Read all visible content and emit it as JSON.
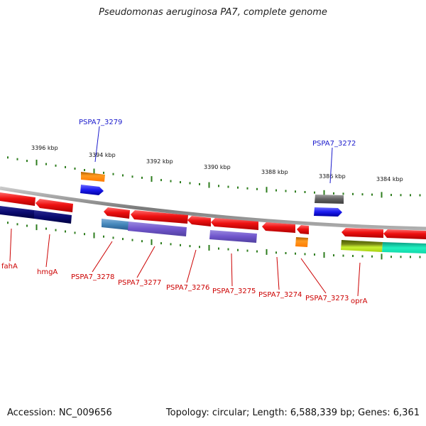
{
  "title": "Pseudomonas aeruginosa PA7, complete genome",
  "footer": {
    "accession": "Accession: NC_009656",
    "topology": "Topology: circular; Length: 6,588,339 bp; Genes: 6,361"
  },
  "scale_labels": [
    "3396 kbp",
    "3394 kbp",
    "3392 kbp",
    "3390 kbp",
    "3388 kbp",
    "3386 kbp",
    "3384 kbp"
  ],
  "gene_labels_top": [
    "PSPA7_3279",
    "PSPA7_3272"
  ],
  "gene_labels_bottom": [
    "fahA",
    "hmgA",
    "PSPA7_3278",
    "PSPA7_3277",
    "PSPA7_3276",
    "PSPA7_3275",
    "PSPA7_3274",
    "PSPA7_3273",
    "oprA"
  ],
  "colors": {
    "top_label": "#1a1acc",
    "bottom_label": "#cc0000",
    "backbone": "#888888",
    "tick": "#2e7d1e",
    "gene_red": "#ee1111",
    "gene_blue": "#1a1aee",
    "gene_orange": "#ff8800",
    "gene_navy": "#0a0a70",
    "gene_purple": "#7055cc",
    "gene_steel": "#4488bb",
    "gene_gray": "#606060",
    "gene_olive": "#6a7a10",
    "gene_yellowgreen": "#b8e020",
    "gene_teal": "#10d8a8"
  }
}
